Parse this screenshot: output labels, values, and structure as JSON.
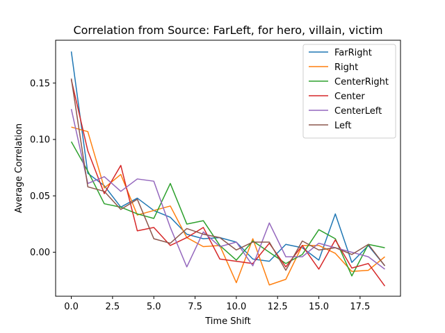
{
  "chart_data": {
    "type": "line",
    "title": "Correlation from Source: FarLeft, for hero, villain, victim",
    "xlabel": "Time Shift",
    "ylabel": "Average Correlation",
    "xlim": [
      -0.95,
      19.95
    ],
    "ylim": [
      -0.039,
      0.188
    ],
    "xticks": [
      0.0,
      2.5,
      5.0,
      7.5,
      10.0,
      12.5,
      15.0,
      17.5
    ],
    "xtick_labels": [
      "0.0",
      "2.5",
      "5.0",
      "7.5",
      "10.0",
      "12.5",
      "15.0",
      "17.5"
    ],
    "yticks": [
      0.0,
      0.05,
      0.1,
      0.15
    ],
    "ytick_labels": [
      "0.00",
      "0.05",
      "0.10",
      "0.15"
    ],
    "grid": false,
    "legend_position": "top-right",
    "x": [
      0,
      1,
      2,
      3,
      4,
      5,
      6,
      7,
      8,
      9,
      10,
      11,
      12,
      13,
      14,
      15,
      16,
      17,
      18,
      19
    ],
    "series": [
      {
        "name": "FarRight",
        "color": "#1f77b4",
        "values": [
          0.178,
          0.07,
          0.059,
          0.04,
          0.048,
          0.037,
          0.031,
          0.016,
          0.012,
          0.013,
          0.009,
          -0.006,
          -0.008,
          0.007,
          0.004,
          -0.007,
          0.034,
          -0.009,
          0.006,
          -0.012
        ]
      },
      {
        "name": "Right",
        "color": "#ff7f0e",
        "values": [
          0.111,
          0.107,
          0.057,
          0.069,
          0.033,
          0.037,
          0.041,
          0.013,
          0.005,
          0.006,
          -0.027,
          0.012,
          -0.029,
          -0.024,
          0.006,
          0.006,
          -0.001,
          -0.017,
          -0.016,
          -0.004
        ]
      },
      {
        "name": "CenterRight",
        "color": "#2ca02c",
        "values": [
          0.098,
          0.072,
          0.043,
          0.04,
          0.034,
          0.03,
          0.061,
          0.025,
          0.028,
          0.006,
          -0.007,
          0.01,
          0.0,
          -0.01,
          -0.002,
          0.02,
          0.012,
          -0.021,
          0.007,
          0.004
        ]
      },
      {
        "name": "Center",
        "color": "#d62728",
        "values": [
          0.153,
          0.09,
          0.052,
          0.077,
          0.019,
          0.022,
          0.006,
          0.013,
          0.022,
          -0.006,
          -0.008,
          -0.01,
          0.008,
          -0.013,
          0.006,
          -0.015,
          0.011,
          -0.014,
          -0.01,
          -0.03
        ]
      },
      {
        "name": "CenterLeft",
        "color": "#9467bd",
        "values": [
          0.127,
          0.061,
          0.067,
          0.054,
          0.065,
          0.063,
          0.022,
          -0.013,
          0.018,
          0.005,
          0.009,
          -0.012,
          0.026,
          -0.004,
          -0.004,
          0.008,
          0.004,
          0.0,
          -0.004,
          -0.015
        ]
      },
      {
        "name": "Left",
        "color": "#8c564b",
        "values": [
          0.154,
          0.058,
          0.054,
          0.038,
          0.047,
          0.012,
          0.008,
          0.021,
          0.016,
          0.013,
          0.002,
          0.009,
          0.009,
          -0.016,
          0.01,
          0.002,
          0.004,
          -0.002,
          0.007,
          -0.012
        ]
      }
    ]
  }
}
